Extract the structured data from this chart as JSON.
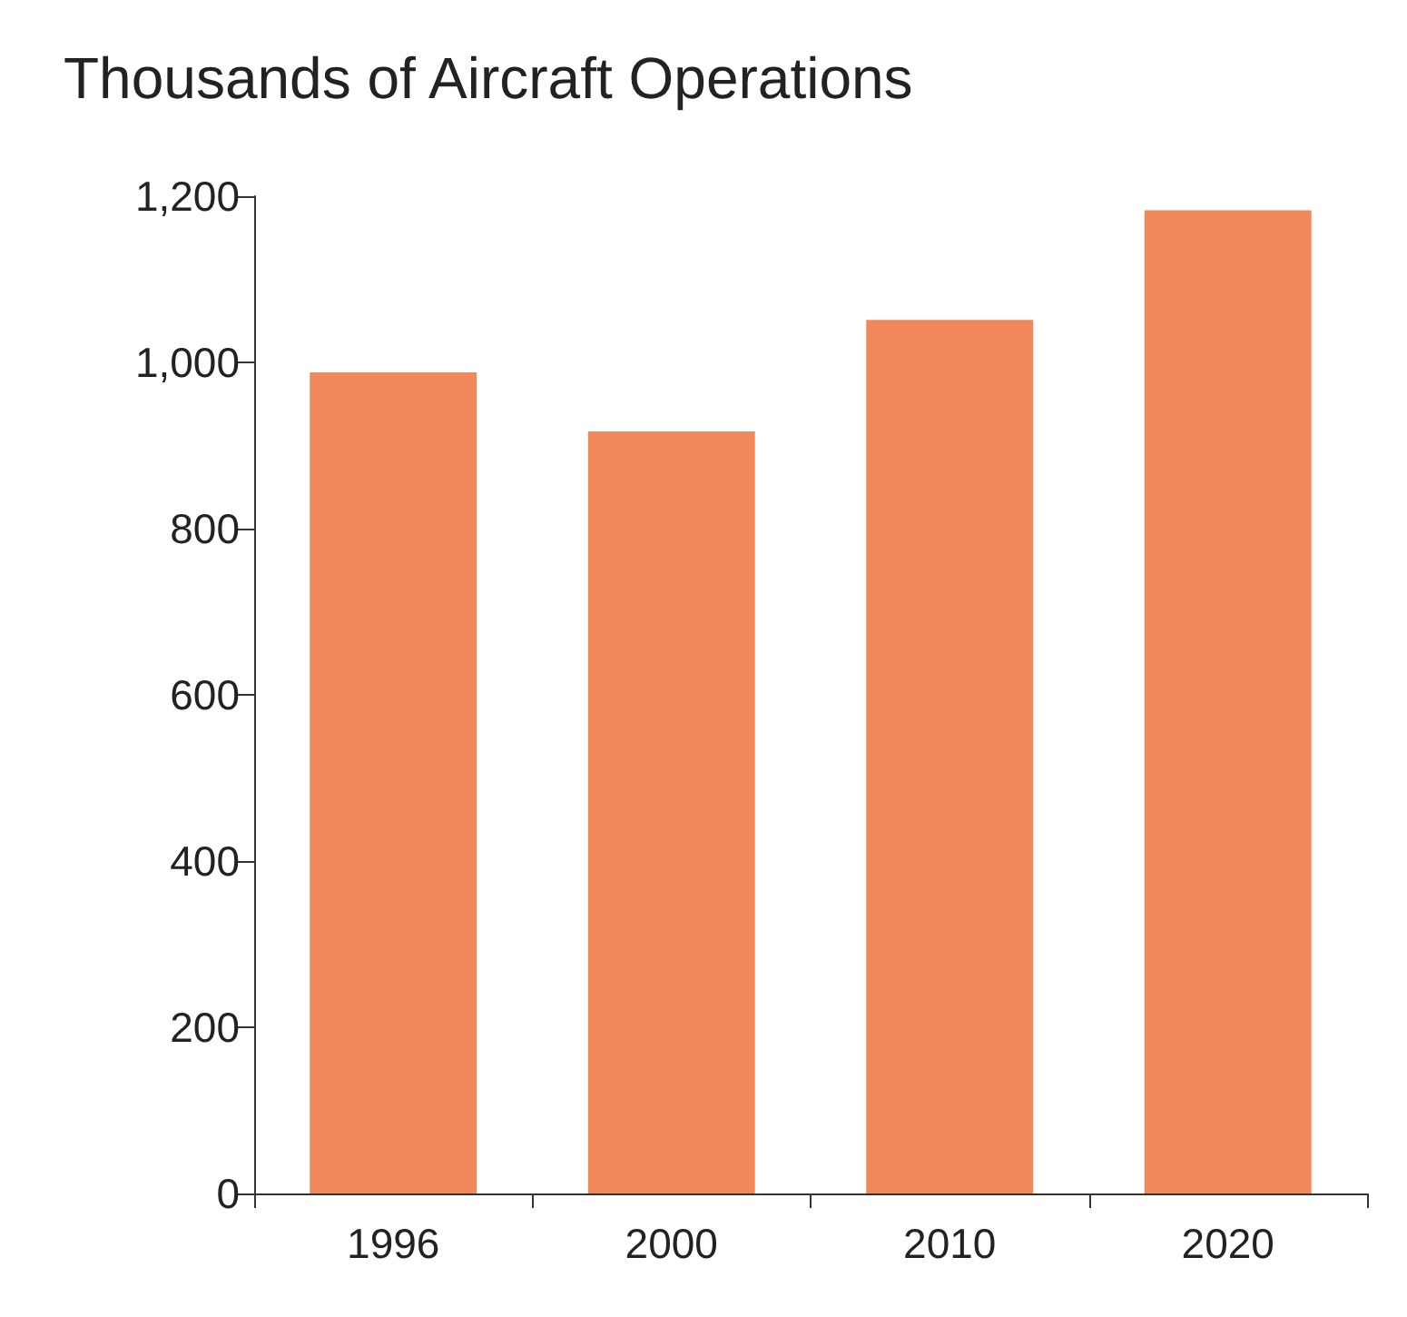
{
  "chart_data": {
    "type": "bar",
    "title": "Thousands of Aircraft Operations",
    "categories": [
      "1996",
      "2000",
      "2010",
      "2020"
    ],
    "values": [
      988,
      917,
      1051,
      1183
    ],
    "color": "#f0885a",
    "ylim": [
      0,
      1200
    ],
    "yticks": [
      0,
      200,
      400,
      600,
      800,
      {
        "value": 1000,
        "label": "1,000"
      },
      {
        "value": 1200,
        "label": "1,200"
      }
    ],
    "grid": false
  }
}
